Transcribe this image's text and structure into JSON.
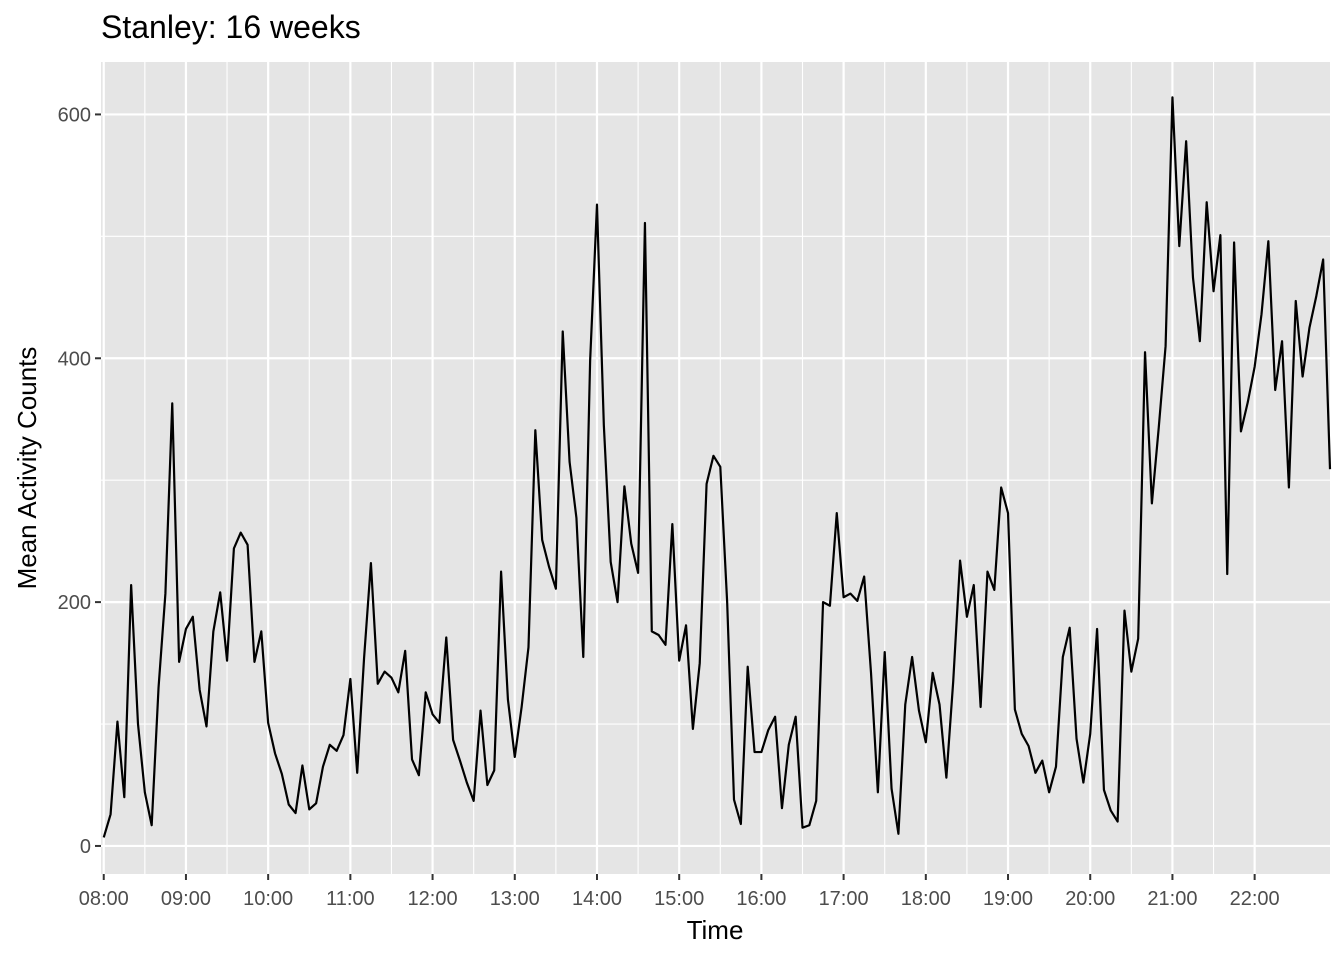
{
  "chart_data": {
    "type": "line",
    "title": "Stanley: 16 weeks",
    "xlabel": "Time",
    "ylabel": "Mean Activity Counts",
    "x_ticks": [
      "08:00",
      "09:00",
      "10:00",
      "11:00",
      "12:00",
      "13:00",
      "14:00",
      "15:00",
      "16:00",
      "17:00",
      "18:00",
      "19:00",
      "20:00",
      "21:00",
      "22:00"
    ],
    "y_ticks": [
      0,
      200,
      400,
      600
    ],
    "xlim": [
      "07:58",
      "22:55"
    ],
    "ylim": [
      -23,
      643
    ],
    "grid": true,
    "legend": "none",
    "colors": {
      "panel": "#e5e5e5",
      "grid": "#ffffff",
      "line": "#000000"
    },
    "series": [
      {
        "x": [
          "08:00",
          "08:05",
          "08:10",
          "08:15",
          "08:20",
          "08:25",
          "08:30",
          "08:35",
          "08:40",
          "08:45",
          "08:50",
          "08:55",
          "09:00",
          "09:05",
          "09:10",
          "09:15",
          "09:20",
          "09:25",
          "09:30",
          "09:35",
          "09:40",
          "09:45",
          "09:50",
          "09:55",
          "10:00",
          "10:05",
          "10:10",
          "10:15",
          "10:20",
          "10:25",
          "10:30",
          "10:35",
          "10:40",
          "10:45",
          "10:50",
          "10:55",
          "11:00",
          "11:05",
          "11:10",
          "11:15",
          "11:20",
          "11:25",
          "11:30",
          "11:35",
          "11:40",
          "11:45",
          "11:50",
          "11:55",
          "12:00",
          "12:05",
          "12:10",
          "12:15",
          "12:20",
          "12:25",
          "12:30",
          "12:35",
          "12:40",
          "12:45",
          "12:50",
          "12:55",
          "13:00",
          "13:05",
          "13:10",
          "13:15",
          "13:20",
          "13:25",
          "13:30",
          "13:35",
          "13:40",
          "13:45",
          "13:50",
          "13:55",
          "14:00",
          "14:05",
          "14:10",
          "14:15",
          "14:20",
          "14:25",
          "14:30",
          "14:35",
          "14:40",
          "14:45",
          "14:50",
          "14:55",
          "15:00",
          "15:05",
          "15:10",
          "15:15",
          "15:20",
          "15:25",
          "15:30",
          "15:35",
          "15:40",
          "15:45",
          "15:50",
          "15:55",
          "16:00",
          "16:05",
          "16:10",
          "16:15",
          "16:20",
          "16:25",
          "16:30",
          "16:35",
          "16:40",
          "16:45",
          "16:50",
          "16:55",
          "17:00",
          "17:05",
          "17:10",
          "17:15",
          "17:20",
          "17:25",
          "17:30",
          "17:35",
          "17:40",
          "17:45",
          "17:50",
          "17:55",
          "18:00",
          "18:05",
          "18:10",
          "18:15",
          "18:20",
          "18:25",
          "18:30",
          "18:35",
          "18:40",
          "18:45",
          "18:50",
          "18:55",
          "19:00",
          "19:05",
          "19:10",
          "19:15",
          "19:20",
          "19:25",
          "19:30",
          "19:35",
          "19:40",
          "19:45",
          "19:50",
          "19:55",
          "20:00",
          "20:05",
          "20:10",
          "20:15",
          "20:20",
          "20:25",
          "20:30",
          "20:35",
          "20:40",
          "20:45",
          "20:50",
          "20:55",
          "21:00",
          "21:05",
          "21:10",
          "21:15",
          "21:20",
          "21:25",
          "21:30",
          "21:35",
          "21:40",
          "21:45",
          "21:50",
          "21:55",
          "22:00",
          "22:05",
          "22:10",
          "22:15",
          "22:20",
          "22:25",
          "22:30",
          "22:35",
          "22:40",
          "22:45",
          "22:50",
          "22:55"
        ],
        "y": [
          7,
          26,
          102,
          40,
          214,
          100,
          44,
          17,
          130,
          207,
          363,
          151,
          178,
          188,
          128,
          98,
          176,
          208,
          152,
          244,
          257,
          247,
          151,
          176,
          101,
          76,
          59,
          34,
          27,
          66,
          30,
          35,
          65,
          83,
          78,
          91,
          137,
          60,
          154,
          232,
          133,
          143,
          138,
          126,
          160,
          71,
          58,
          126,
          108,
          101,
          171,
          87,
          70,
          52,
          37,
          111,
          50,
          62,
          225,
          120,
          73,
          114,
          163,
          341,
          251,
          229,
          211,
          422,
          315,
          269,
          155,
          398,
          526,
          345,
          233,
          200,
          295,
          248,
          224,
          511,
          176,
          173,
          165,
          264,
          152,
          181,
          96,
          150,
          297,
          320,
          311,
          200,
          38,
          18,
          147,
          77,
          77,
          95,
          106,
          31,
          83,
          106,
          15,
          17,
          37,
          200,
          197,
          273,
          204,
          207,
          201,
          221,
          142,
          44,
          159,
          47,
          10,
          116,
          155,
          111,
          85,
          142,
          116,
          56,
          135,
          234,
          188,
          214,
          114,
          225,
          210,
          294,
          273,
          112,
          92,
          82,
          60,
          70,
          44,
          65,
          155,
          179,
          88,
          52,
          92,
          178,
          46,
          29,
          20,
          193,
          143,
          170,
          405,
          281,
          343,
          410,
          614,
          492,
          578,
          466,
          414,
          528,
          455,
          501,
          223,
          495,
          340,
          364,
          393,
          436,
          496,
          374,
          414,
          294,
          447,
          385,
          425,
          451,
          481,
          309
        ]
      }
    ]
  }
}
